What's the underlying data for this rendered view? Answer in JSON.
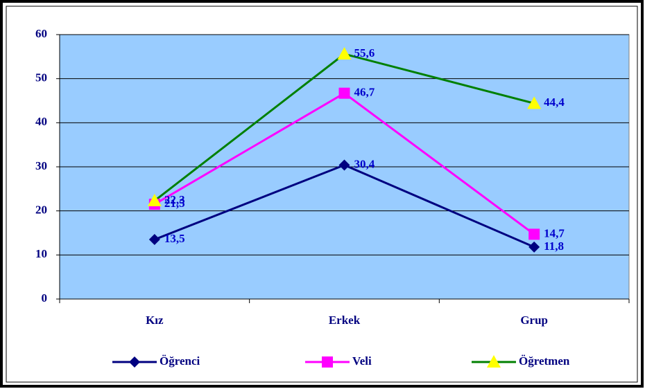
{
  "chart_data": {
    "type": "line",
    "categories": [
      "Kız",
      "Erkek",
      "Grup"
    ],
    "series": [
      {
        "name": "Öğrenci",
        "color": "#000080",
        "marker": "diamond",
        "marker_color": "#000080",
        "values": [
          13.5,
          30.4,
          11.8
        ],
        "value_labels": [
          "13,5",
          "30,4",
          "11,8"
        ]
      },
      {
        "name": "Veli",
        "color": "#ff00ff",
        "marker": "square",
        "marker_color": "#ff00ff",
        "values": [
          21.5,
          46.7,
          14.7
        ],
        "value_labels": [
          "21,5",
          "46,7",
          "14,7"
        ]
      },
      {
        "name": "Öğretmen",
        "color": "#008000",
        "marker": "triangle",
        "marker_color": "#ffff00",
        "values": [
          22.3,
          55.6,
          44.4
        ],
        "value_labels": [
          "22,3",
          "55,6",
          "44,4"
        ]
      }
    ],
    "ylim": [
      0,
      60
    ],
    "yticks": [
      0,
      10,
      20,
      30,
      40,
      50,
      60
    ],
    "grid": true,
    "plot_background": "#99ccff",
    "legend": "bottom"
  }
}
